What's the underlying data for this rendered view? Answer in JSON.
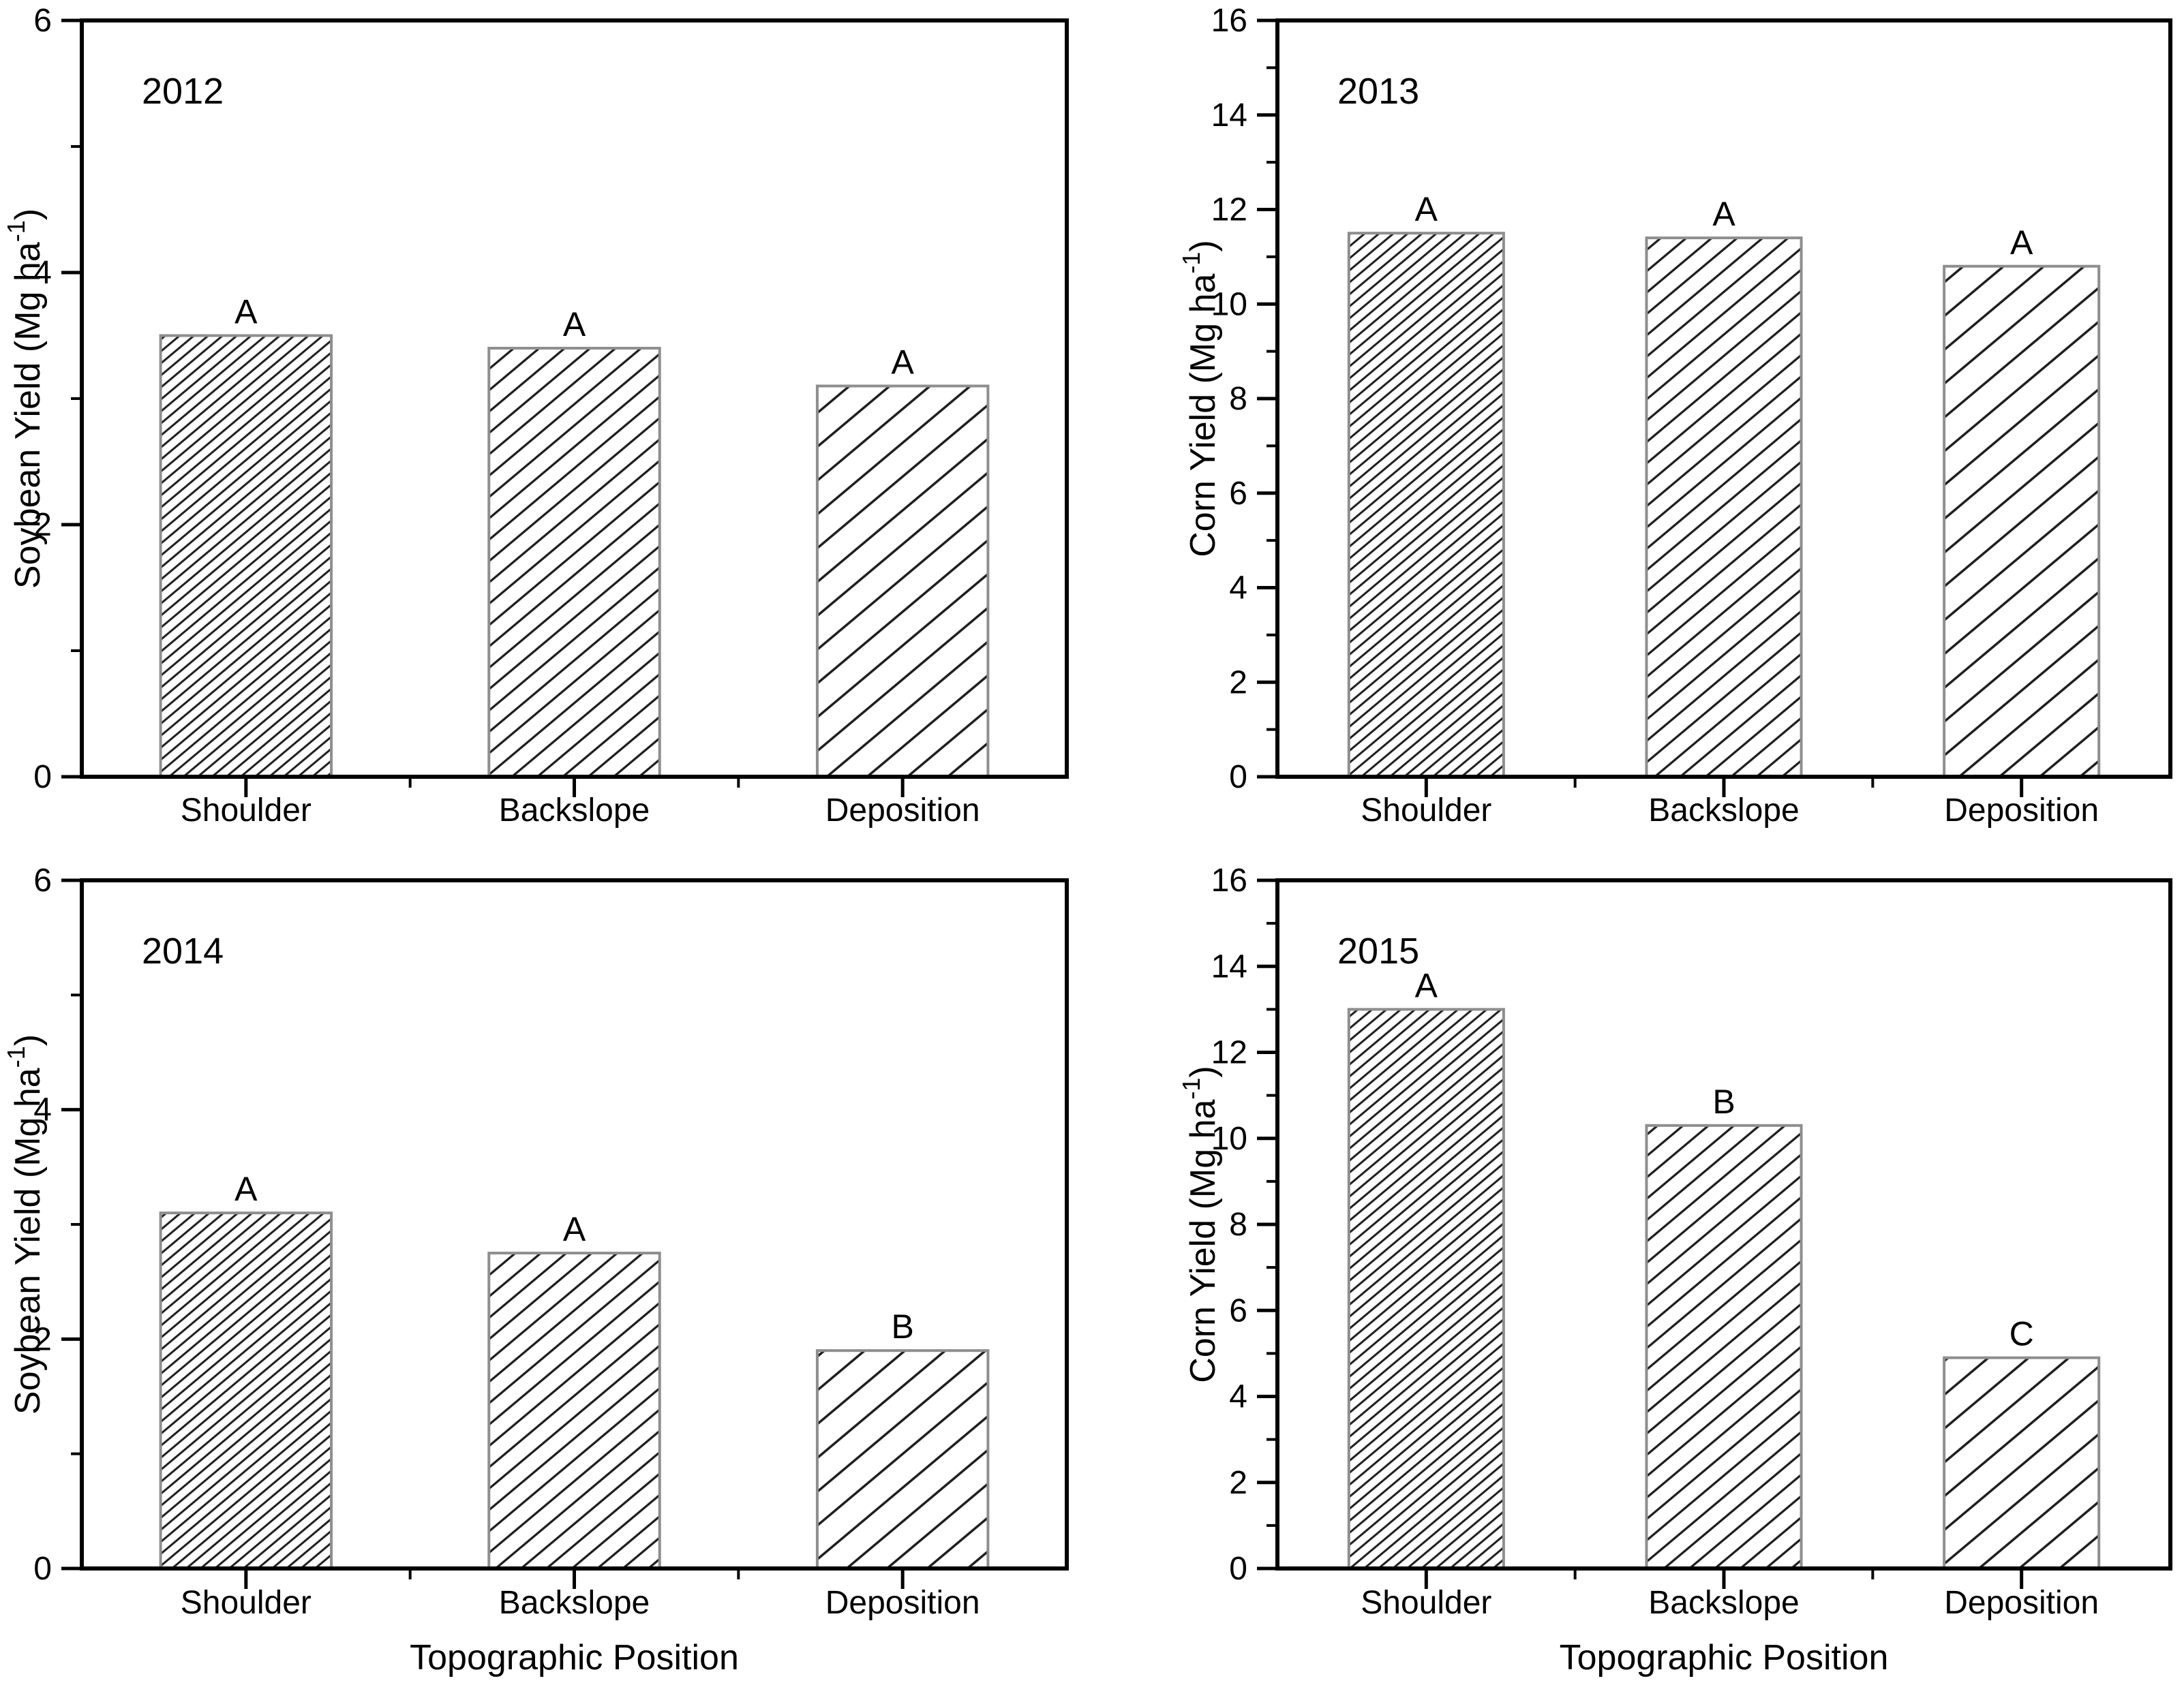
{
  "figure": {
    "xlabel_shared": "Topographic Position",
    "colors": {
      "background": "#ffffff",
      "axis": "#000000",
      "bar_border": "#8e8e8e",
      "hatch_line": "#1c1c1c",
      "text": "#000000"
    }
  },
  "chart_data": [
    {
      "type": "bar",
      "title": "2012",
      "categories": [
        "Shoulder",
        "Backslope",
        "Deposition"
      ],
      "values": [
        3.5,
        3.4,
        3.1
      ],
      "bar_labels": [
        "A",
        "A",
        "A"
      ],
      "xlabel": "",
      "ylabel": "Soybean Yield (Mg ha⁻¹)",
      "ylim": [
        0,
        6
      ],
      "ytick_interval": 2,
      "yminor_interval": 1,
      "grid": false,
      "legend": "none",
      "hatch": [
        "dense",
        "medium",
        "sparse"
      ]
    },
    {
      "type": "bar",
      "title": "2013",
      "categories": [
        "Shoulder",
        "Backslope",
        "Deposition"
      ],
      "values": [
        11.5,
        11.4,
        10.8
      ],
      "bar_labels": [
        "A",
        "A",
        "A"
      ],
      "xlabel": "",
      "ylabel": "Corn Yield (Mg ha⁻¹)",
      "ylim": [
        0,
        16
      ],
      "ytick_interval": 2,
      "yminor_interval": 1,
      "grid": false,
      "legend": "none",
      "hatch": [
        "dense",
        "medium",
        "sparse"
      ]
    },
    {
      "type": "bar",
      "title": "2014",
      "categories": [
        "Shoulder",
        "Backslope",
        "Deposition"
      ],
      "values": [
        3.1,
        2.75,
        1.9
      ],
      "bar_labels": [
        "A",
        "A",
        "B"
      ],
      "xlabel": "Topographic Position",
      "ylabel": "Soybean Yield (Mg ha⁻¹)",
      "ylim": [
        0,
        6
      ],
      "ytick_interval": 2,
      "yminor_interval": 1,
      "grid": false,
      "legend": "none",
      "hatch": [
        "dense",
        "medium",
        "sparse"
      ]
    },
    {
      "type": "bar",
      "title": "2015",
      "categories": [
        "Shoulder",
        "Backslope",
        "Deposition"
      ],
      "values": [
        13.0,
        10.3,
        4.9
      ],
      "bar_labels": [
        "A",
        "B",
        "C"
      ],
      "xlabel": "Topographic Position",
      "ylabel": "Corn Yield (Mg ha⁻¹)",
      "ylim": [
        0,
        16
      ],
      "ytick_interval": 2,
      "yminor_interval": 1,
      "grid": false,
      "legend": "none",
      "hatch": [
        "dense",
        "medium",
        "sparse"
      ]
    }
  ]
}
